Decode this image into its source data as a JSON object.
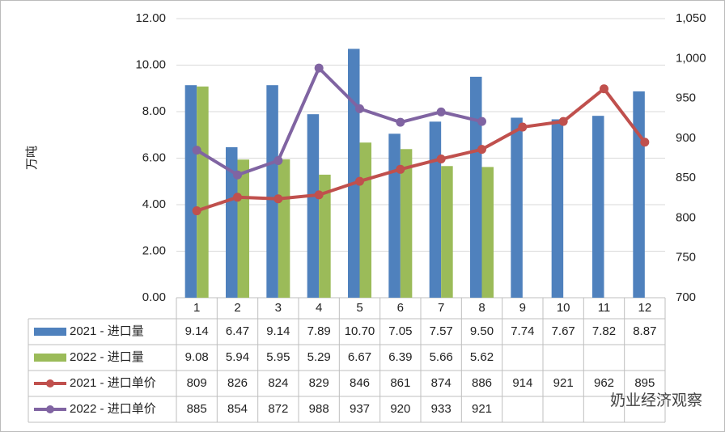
{
  "chart_data": {
    "type": "bar_line_table",
    "y_label": "万吨",
    "watermark": "奶业经济观察",
    "categories": [
      "1",
      "2",
      "3",
      "4",
      "5",
      "6",
      "7",
      "8",
      "9",
      "10",
      "11",
      "12"
    ],
    "ylim": [
      0,
      12
    ],
    "yticks": [
      {
        "value": 0,
        "label": "0.00"
      },
      {
        "value": 2,
        "label": "2.00"
      },
      {
        "value": 4,
        "label": "4.00"
      },
      {
        "value": 6,
        "label": "6.00"
      },
      {
        "value": 8,
        "label": "8.00"
      },
      {
        "value": 10,
        "label": "10.00"
      },
      {
        "value": 12,
        "label": "12.00"
      }
    ],
    "y2lim": [
      700,
      1050
    ],
    "y2ticks": [
      700,
      750,
      800,
      850,
      900,
      950,
      {
        "value": 1000,
        "label": "1,000"
      },
      {
        "value": 1050,
        "label": "1,050"
      }
    ],
    "series": [
      {
        "name": "2021 - 进口量",
        "kind": "bar",
        "color": "#4f81bd",
        "values": [
          9.14,
          6.47,
          9.14,
          7.89,
          10.7,
          7.05,
          7.57,
          9.5,
          7.74,
          7.67,
          7.82,
          8.87
        ],
        "value_labels": [
          "9.14",
          "6.47",
          "9.14",
          "7.89",
          "10.70",
          "7.05",
          "7.57",
          "9.50",
          "7.74",
          "7.67",
          "7.82",
          "8.87"
        ]
      },
      {
        "name": "2022 - 进口量",
        "kind": "bar",
        "color": "#9bbb59",
        "values": [
          9.08,
          5.94,
          5.95,
          5.29,
          6.67,
          6.39,
          5.66,
          5.62,
          null,
          null,
          null,
          null
        ],
        "value_labels": [
          "9.08",
          "5.94",
          "5.95",
          "5.29",
          "6.67",
          "6.39",
          "5.66",
          "5.62",
          null,
          null,
          null,
          null
        ]
      },
      {
        "name": "2021 - 进口单价",
        "kind": "line",
        "axis": "y2",
        "color": "#c0504d",
        "values": [
          809,
          826,
          824,
          829,
          846,
          861,
          874,
          886,
          914,
          921,
          962,
          895
        ]
      },
      {
        "name": "2022 - 进口单价",
        "kind": "line",
        "axis": "y2",
        "color": "#8064a2",
        "values": [
          885,
          854,
          872,
          988,
          937,
          920,
          933,
          921,
          null,
          null,
          null,
          null
        ]
      }
    ]
  }
}
